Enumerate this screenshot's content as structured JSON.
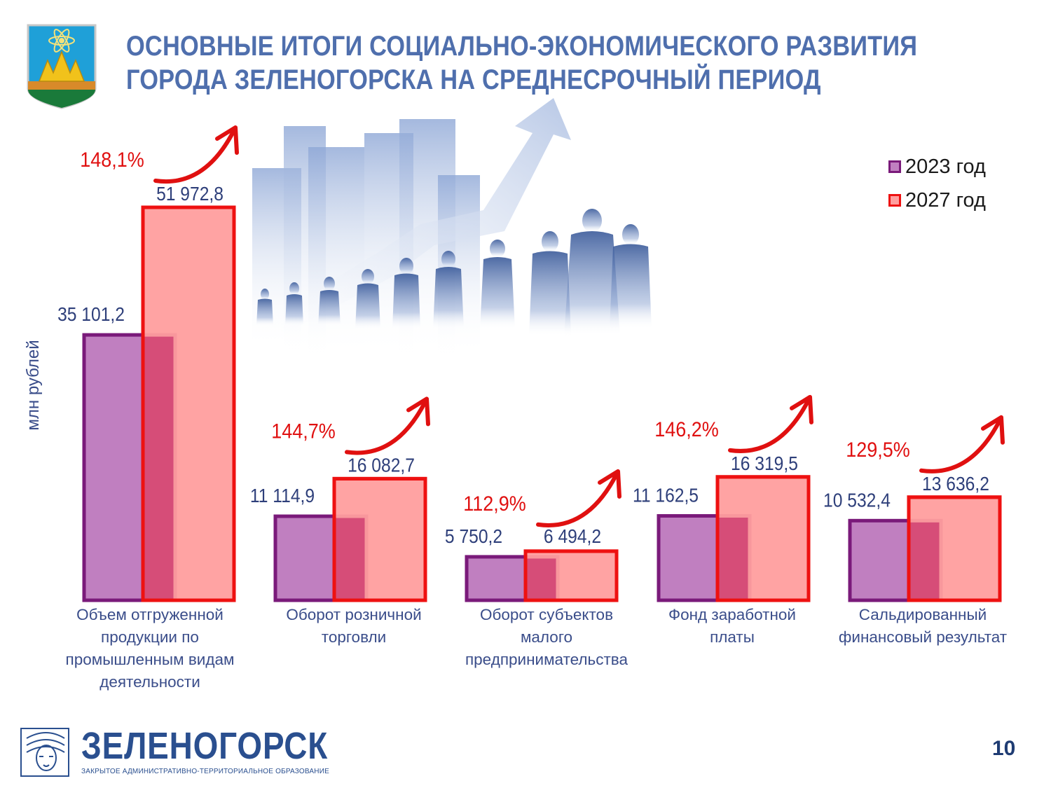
{
  "title": {
    "line1": "ОСНОВНЫЕ ИТОГИ СОЦИАЛЬНО-ЭКОНОМИЧЕСКОГО РАЗВИТИЯ",
    "line2": "ГОРОДА ЗЕЛЕНОГОРСКА НА СРЕДНЕСРОЧНЫЙ ПЕРИОД"
  },
  "colors": {
    "title": "#4f6fad",
    "series_2023_fill": "#c07fc0",
    "series_2023_stroke": "#7a1a7a",
    "series_2027_fill": "#ff9e9e",
    "series_2027_stroke": "#ee1111",
    "growth_text": "#e01010",
    "value_text": "#2e3f7a"
  },
  "chart_data": {
    "type": "bar",
    "ylabel": "млн рублей",
    "ylim": [
      0,
      51972.8
    ],
    "grid": false,
    "legend_position": "top-right",
    "categories": [
      [
        "Объем отгруженной",
        "продукции по",
        "промышленным видам",
        "деятельности"
      ],
      [
        "Оборот розничной",
        "торговли"
      ],
      [
        "Оборот субъектов",
        "малого",
        "предпринимательства"
      ],
      [
        "Фонд заработной",
        "платы"
      ],
      [
        "Сальдированный",
        "финансовый результат"
      ]
    ],
    "series": [
      {
        "name": "2023 год",
        "values": [
          35101.2,
          11114.9,
          5750.2,
          11162.5,
          10532.4
        ],
        "labels": [
          "35 101,2",
          "11 114,9",
          "5 750,2",
          "11 162,5",
          "10 532,4"
        ]
      },
      {
        "name": "2027 год",
        "values": [
          51972.8,
          16082.7,
          6494.2,
          16319.5,
          13636.2
        ],
        "labels": [
          "51 972,8",
          "16 082,7",
          "6 494,2",
          "16 319,5",
          "13 636,2"
        ]
      }
    ],
    "growth": [
      "148,1%",
      "144,7%",
      "112,9%",
      "146,2%",
      "129,5%"
    ]
  },
  "footer": {
    "brand": "ЗЕЛЕНОГОРСК",
    "subtitle": "ЗАКРЫТОЕ АДМИНИСТРАТИВНО-ТЕРРИТОРИАЛЬНОЕ ОБРАЗОВАНИЕ",
    "page_number": "10"
  }
}
